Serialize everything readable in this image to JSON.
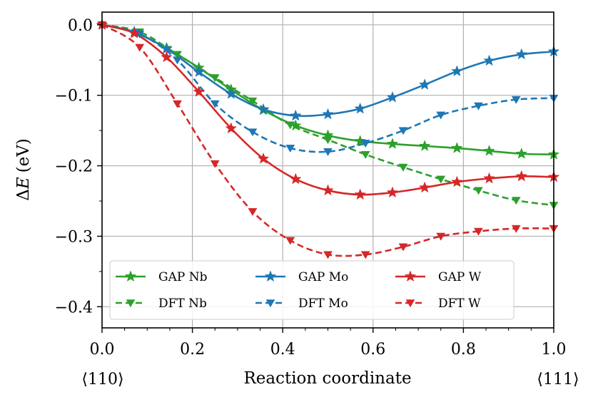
{
  "chart_data": {
    "type": "line",
    "title": "",
    "xlabel": "Reaction coordinate",
    "ylabel_prefix": "Δ",
    "ylabel_var": "E",
    "ylabel_unit": "(eV)",
    "x_endpoint_labels": [
      "⟨110⟩",
      "⟨111⟩"
    ],
    "xlim": [
      0.0,
      1.0
    ],
    "ylim": [
      -0.43,
      0.018
    ],
    "xticks": [
      0.0,
      0.2,
      0.4,
      0.6,
      0.8,
      1.0
    ],
    "xtick_labels": [
      "0.0",
      "0.2",
      "0.4",
      "0.6",
      "0.8",
      "1.0"
    ],
    "yticks": [
      0.0,
      -0.1,
      -0.2,
      -0.3,
      -0.4
    ],
    "ytick_labels": [
      "0.0",
      "−0.1",
      "−0.2",
      "−0.3",
      "−0.4"
    ],
    "grid": true,
    "legend_position": "lower-left",
    "series": [
      {
        "name": "GAP Nb",
        "color": "#2ca02c",
        "style": "solid",
        "marker": "star",
        "x": [
          0.0,
          0.0714,
          0.1429,
          0.2143,
          0.2857,
          0.3571,
          0.4286,
          0.5,
          0.5714,
          0.6429,
          0.7143,
          0.7857,
          0.8571,
          0.9286,
          1.0
        ],
        "y": [
          0.0,
          -0.011,
          -0.033,
          -0.061,
          -0.092,
          -0.121,
          -0.143,
          -0.157,
          -0.165,
          -0.169,
          -0.172,
          -0.175,
          -0.179,
          -0.183,
          -0.184
        ]
      },
      {
        "name": "DFT Nb",
        "color": "#2ca02c",
        "style": "dashed",
        "marker": "triangle-down",
        "x": [
          0.0,
          0.0833,
          0.1667,
          0.25,
          0.3333,
          0.4167,
          0.5,
          0.5833,
          0.6667,
          0.75,
          0.8333,
          0.9167,
          1.0
        ],
        "y": [
          0.0,
          -0.01,
          -0.042,
          -0.075,
          -0.108,
          -0.142,
          -0.163,
          -0.184,
          -0.202,
          -0.219,
          -0.235,
          -0.249,
          -0.256
        ]
      },
      {
        "name": "GAP Mo",
        "color": "#1f77b4",
        "style": "solid",
        "marker": "star",
        "x": [
          0.0,
          0.0714,
          0.1429,
          0.2143,
          0.2857,
          0.3571,
          0.4286,
          0.5,
          0.5714,
          0.6429,
          0.7143,
          0.7857,
          0.8571,
          0.9286,
          1.0
        ],
        "y": [
          0.0,
          -0.01,
          -0.034,
          -0.067,
          -0.098,
          -0.12,
          -0.129,
          -0.127,
          -0.119,
          -0.103,
          -0.085,
          -0.066,
          -0.051,
          -0.042,
          -0.038
        ]
      },
      {
        "name": "DFT Mo",
        "color": "#1f77b4",
        "style": "dashed",
        "marker": "triangle-down",
        "x": [
          0.0,
          0.0833,
          0.1667,
          0.25,
          0.3333,
          0.4167,
          0.5,
          0.5833,
          0.6667,
          0.75,
          0.8333,
          0.9167,
          1.0
        ],
        "y": [
          0.0,
          -0.013,
          -0.05,
          -0.112,
          -0.152,
          -0.175,
          -0.18,
          -0.168,
          -0.15,
          -0.128,
          -0.115,
          -0.106,
          -0.104
        ]
      },
      {
        "name": "GAP W",
        "color": "#d62728",
        "style": "solid",
        "marker": "star",
        "x": [
          0.0,
          0.0714,
          0.1429,
          0.2143,
          0.2857,
          0.3571,
          0.4286,
          0.5,
          0.5714,
          0.6429,
          0.7143,
          0.7857,
          0.8571,
          0.9286,
          1.0
        ],
        "y": [
          0.0,
          -0.012,
          -0.046,
          -0.095,
          -0.147,
          -0.19,
          -0.219,
          -0.235,
          -0.241,
          -0.238,
          -0.231,
          -0.223,
          -0.218,
          -0.215,
          -0.216
        ]
      },
      {
        "name": "DFT W",
        "color": "#d62728",
        "style": "dashed",
        "marker": "triangle-down",
        "x": [
          0.0,
          0.0833,
          0.1667,
          0.25,
          0.3333,
          0.4167,
          0.5,
          0.5833,
          0.6667,
          0.75,
          0.8333,
          0.9167,
          1.0
        ],
        "y": [
          0.0,
          -0.032,
          -0.112,
          -0.197,
          -0.265,
          -0.306,
          -0.326,
          -0.326,
          -0.315,
          -0.3,
          -0.293,
          -0.289,
          -0.289
        ]
      }
    ]
  }
}
